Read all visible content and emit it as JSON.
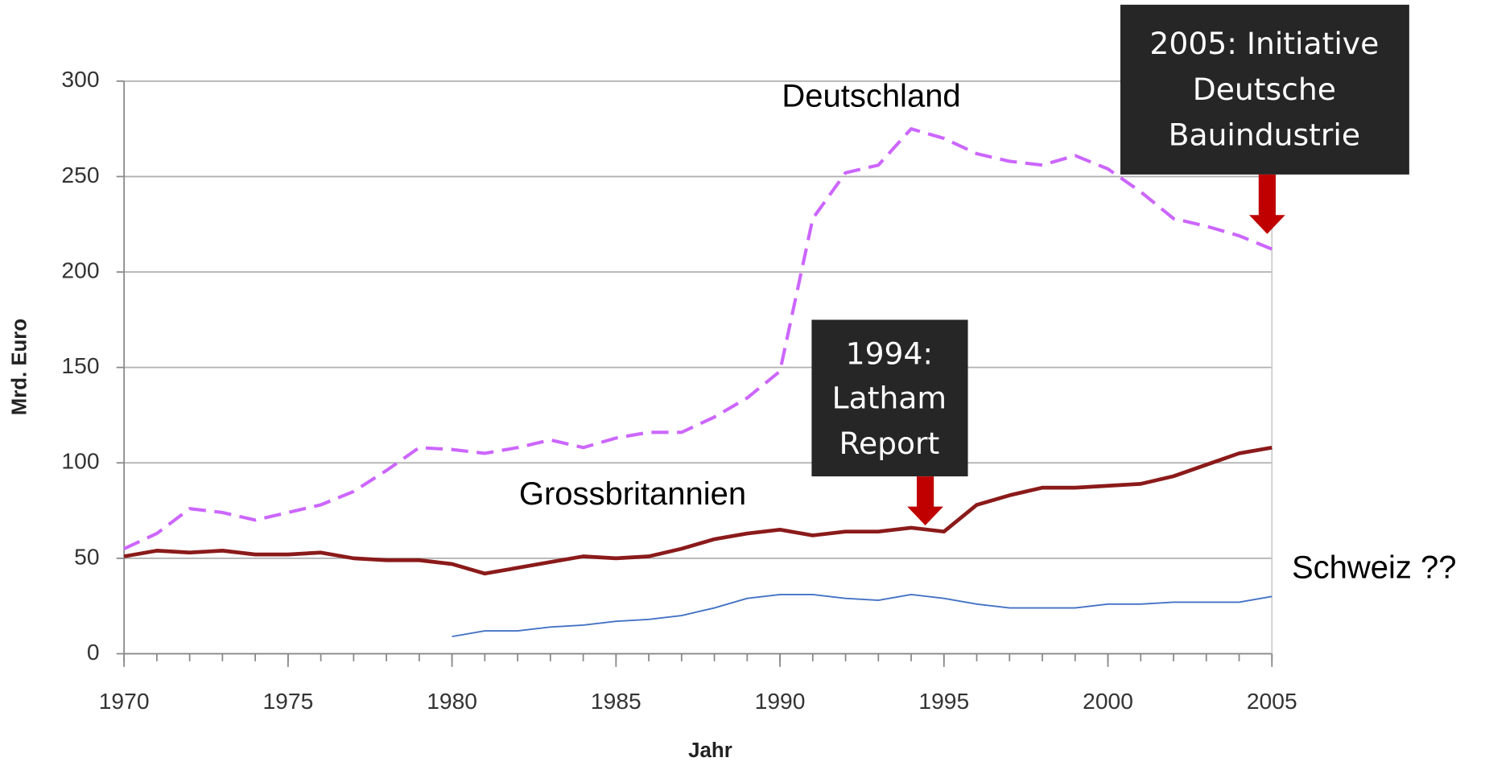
{
  "chart_data": {
    "type": "line",
    "x": [
      1970,
      1971,
      1972,
      1973,
      1974,
      1975,
      1976,
      1977,
      1978,
      1979,
      1980,
      1981,
      1982,
      1983,
      1984,
      1985,
      1986,
      1987,
      1988,
      1989,
      1990,
      1991,
      1992,
      1993,
      1994,
      1995,
      1996,
      1997,
      1998,
      1999,
      2000,
      2001,
      2002,
      2003,
      2004,
      2005
    ],
    "series": [
      {
        "name": "Deutschland",
        "color": "#cc66ff",
        "dashed": true,
        "values": [
          55,
          63,
          76,
          74,
          70,
          74,
          78,
          85,
          96,
          108,
          107,
          105,
          108,
          112,
          108,
          113,
          116,
          116,
          124,
          134,
          148,
          228,
          252,
          256,
          275,
          270,
          262,
          258,
          256,
          261,
          254,
          242,
          228,
          224,
          219,
          212
        ]
      },
      {
        "name": "Grossbritannien",
        "color": "#8b1a1a",
        "values": [
          51,
          54,
          53,
          54,
          52,
          52,
          53,
          50,
          49,
          49,
          47,
          42,
          45,
          48,
          51,
          50,
          51,
          55,
          60,
          63,
          65,
          62,
          64,
          64,
          66,
          64,
          78,
          83,
          87,
          87,
          88,
          89,
          93,
          99,
          105,
          108
        ]
      },
      {
        "name": "Schweiz ??",
        "color": "#4472c4",
        "values": [
          null,
          null,
          null,
          null,
          null,
          null,
          null,
          null,
          null,
          null,
          9,
          12,
          12,
          14,
          15,
          17,
          18,
          20,
          24,
          29,
          31,
          31,
          29,
          28,
          31,
          29,
          26,
          24,
          24,
          24,
          26,
          26,
          27,
          27,
          27,
          30
        ]
      }
    ],
    "xlabel": "Jahr",
    "ylabel": "Mrd. Euro",
    "xlim": [
      1970,
      2005
    ],
    "xticks": [
      1970,
      1975,
      1980,
      1985,
      1990,
      1995,
      2000,
      2005
    ],
    "ylim": [
      0,
      300
    ],
    "yticks": [
      0,
      50,
      100,
      150,
      200,
      250,
      300
    ],
    "grid": true,
    "annotations": [
      {
        "lines": [
          "2005: Initiative",
          "Deutsche",
          "Bauindustrie"
        ]
      },
      {
        "lines": [
          "1994:",
          "Latham",
          "Report"
        ]
      }
    ]
  }
}
